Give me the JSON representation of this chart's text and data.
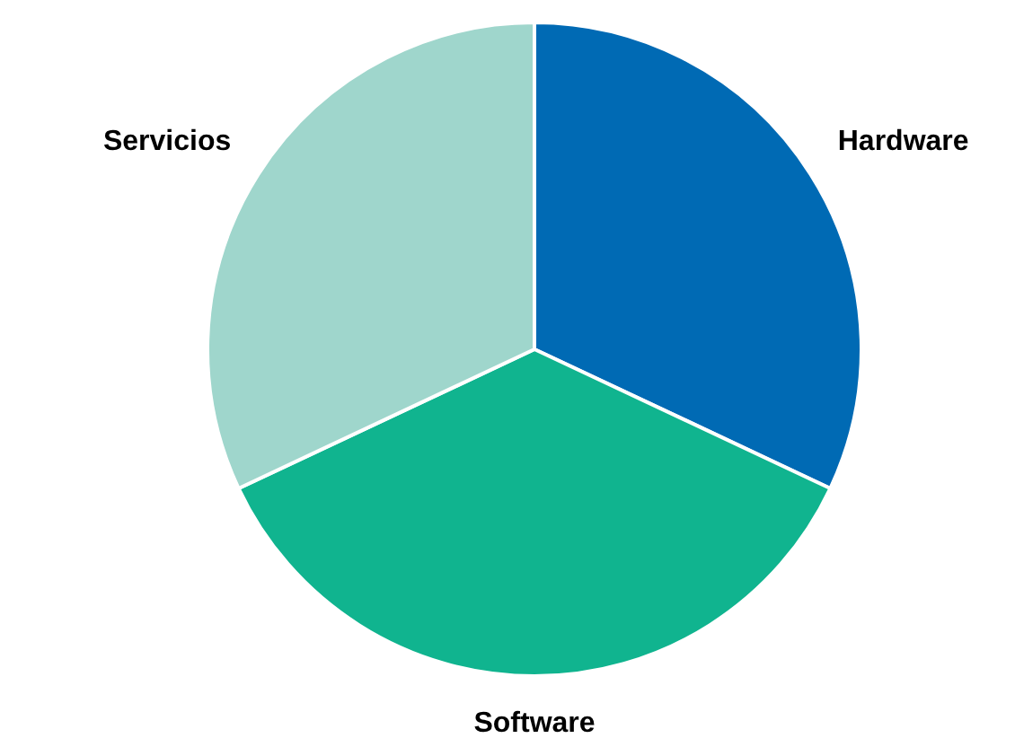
{
  "chart_data": {
    "type": "pie",
    "categories": [
      "Hardware",
      "Software",
      "Servicios"
    ],
    "values": [
      32,
      36,
      32
    ],
    "colors": [
      "#006ab4",
      "#10b48f",
      "#9fd6cc"
    ]
  }
}
